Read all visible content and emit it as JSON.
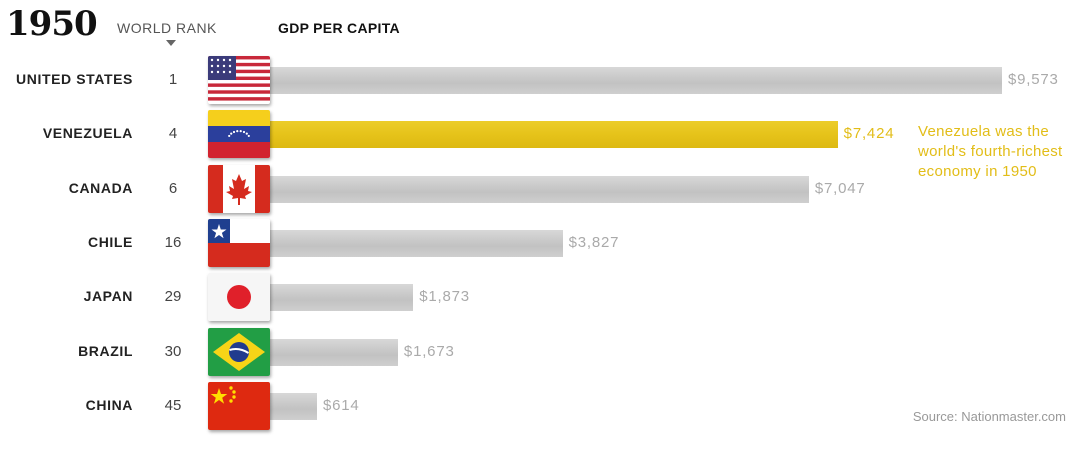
{
  "year": "1950",
  "headers": {
    "rank": "WORLD RANK",
    "gdp": "GDP PER CAPITA"
  },
  "annotation": "Venezuela was the world's fourth-richest economy in 1950",
  "source": "Source: Nationmaster.com",
  "colors": {
    "highlight": "#e6c31a",
    "bar": "#c9c9c9",
    "value_text": "#aaaaaa"
  },
  "chart_data": {
    "type": "bar",
    "title": "1950",
    "xlabel": "GDP PER CAPITA",
    "ylabel": "",
    "xlim": [
      0,
      9573
    ],
    "highlight": "VENEZUELA",
    "categories": [
      "UNITED STATES",
      "VENEZUELA",
      "CANADA",
      "CHILE",
      "JAPAN",
      "BRAZIL",
      "CHINA"
    ],
    "ranks": [
      "1",
      "4",
      "6",
      "16",
      "29",
      "30",
      "45"
    ],
    "values": [
      9573,
      7424,
      7047,
      3827,
      1873,
      1673,
      614
    ],
    "value_labels": [
      "$9,573",
      "$7,424",
      "$7,047",
      "$3,827",
      "$1,873",
      "$1,673",
      "$614"
    ],
    "flag_icons": [
      "us-flag-icon",
      "venezuela-flag-icon",
      "canada-flag-icon",
      "chile-flag-icon",
      "japan-flag-icon",
      "brazil-flag-icon",
      "china-flag-icon"
    ]
  }
}
